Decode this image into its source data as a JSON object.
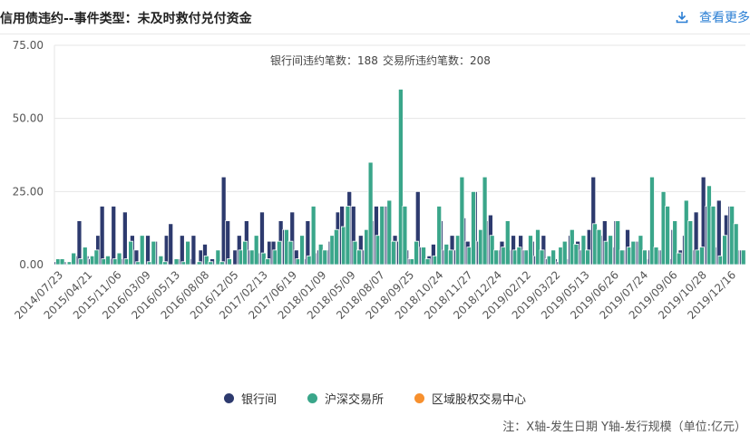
{
  "header": {
    "title": "信用债违约--事件类型：未及时救付兑付资金",
    "more_label": "查看更多",
    "download_icon": "download-icon"
  },
  "chart_data": {
    "type": "bar",
    "annotation_bank_label": "银行间违约笔数：188",
    "annotation_exchange_label": "交易所违约笔数：208",
    "y_ticks": [
      "75.00",
      "50.00",
      "25.00",
      "0.00"
    ],
    "ylim": [
      0,
      75
    ],
    "x_tick_labels": [
      "2014/07/23",
      "2015/04/21",
      "2015/11/06",
      "2016/03/09",
      "2016/05/13",
      "2016/08/08",
      "2016/12/05",
      "2017/02/13",
      "2017/06/19",
      "2018/01/09",
      "2018/05/09",
      "2018/08/07",
      "2018/09/25",
      "2018/10/24",
      "2018/11/27",
      "2018/12/24",
      "2019/02/12",
      "2019/03/22",
      "2019/05/13",
      "2019/06/26",
      "2019/07/24",
      "2019/09/06",
      "2019/10/28",
      "2019/12/16"
    ],
    "grid": "horizontal",
    "legend_position": "bottom",
    "series": [
      {
        "name": "银行间",
        "color": "#2d3a6e",
        "values": [
          1,
          1,
          0,
          3,
          15,
          3,
          2,
          10,
          20,
          2,
          20,
          2,
          18,
          10,
          5,
          0,
          10,
          8,
          0,
          10,
          14,
          2,
          10,
          2,
          10,
          5,
          7,
          2,
          0,
          30,
          15,
          5,
          10,
          15,
          5,
          4,
          18,
          8,
          8,
          15,
          12,
          18,
          5,
          2,
          15,
          4,
          5,
          5,
          8,
          18,
          20,
          25,
          20,
          10,
          5,
          15,
          20,
          20,
          20,
          10,
          8,
          5,
          2,
          25,
          6,
          3,
          7,
          15,
          5,
          10,
          5,
          16,
          8,
          25,
          8,
          15,
          17,
          5,
          8,
          5,
          10,
          10,
          5,
          8,
          3,
          10,
          2,
          2,
          1,
          2,
          10,
          8,
          5,
          12,
          30,
          10,
          15,
          6,
          15,
          5,
          12,
          8,
          8,
          2,
          5,
          5,
          5,
          2,
          12,
          5,
          10,
          5,
          18,
          30,
          20,
          6,
          22,
          17,
          20,
          5,
          5
        ]
      },
      {
        "name": "沪深交易所",
        "color": "#3aa68a",
        "values": [
          2,
          2,
          1,
          4,
          2,
          6,
          3,
          5,
          2,
          3,
          2,
          4,
          2,
          8,
          1,
          10,
          1,
          8,
          3,
          1,
          0,
          2,
          1,
          8,
          0,
          1,
          3,
          1,
          5,
          1,
          2,
          0,
          5,
          8,
          5,
          10,
          4,
          2,
          5,
          8,
          12,
          8,
          2,
          10,
          3,
          20,
          7,
          5,
          10,
          12,
          13,
          20,
          8,
          5,
          12,
          35,
          10,
          20,
          22,
          8,
          60,
          20,
          2,
          8,
          6,
          2,
          3,
          20,
          7,
          5,
          10,
          30,
          6,
          25,
          12,
          30,
          10,
          5,
          6,
          15,
          5,
          6,
          5,
          10,
          12,
          5,
          3,
          5,
          6,
          8,
          12,
          7,
          10,
          5,
          14,
          12,
          8,
          10,
          15,
          5,
          6,
          8,
          10,
          5,
          30,
          6,
          25,
          20,
          15,
          4,
          22,
          15,
          5,
          6,
          27,
          20,
          3,
          10,
          20,
          14,
          5
        ]
      },
      {
        "name": "区域股权交易中心",
        "color": "#f7902e",
        "values": []
      }
    ],
    "xlabel": "",
    "ylabel": ""
  },
  "legend": [
    {
      "label": "银行间",
      "color": "#2d3a6e"
    },
    {
      "label": "沪深交易所",
      "color": "#3aa68a"
    },
    {
      "label": "区域股权交易中心",
      "color": "#f7902e"
    }
  ],
  "note": "注：X轴-发生日期 Y轴-发行规模（单位:亿元）"
}
